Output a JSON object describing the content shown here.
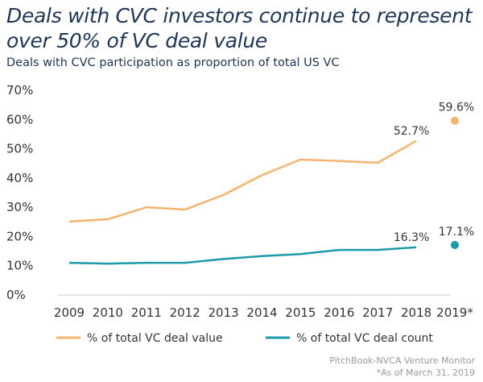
{
  "title": "Deals with CVC investors continue to represent over 50% of VC deal value",
  "subtitle": "Deals with CVC participation as proportion of total US VC",
  "source": "PitchBook-NVCA Venture Monitor",
  "footnote": "*As of March 31, 2019",
  "colors": {
    "value": "#F5B46E",
    "count": "#1B9AAA"
  },
  "chart_data": {
    "type": "line",
    "categories": [
      "2009",
      "2010",
      "2011",
      "2012",
      "2013",
      "2014",
      "2015",
      "2016",
      "2017",
      "2018",
      "2019*"
    ],
    "y_ticks": [
      "0%",
      "10%",
      "20%",
      "30%",
      "40%",
      "50%",
      "60%",
      "70%"
    ],
    "ylim": [
      0,
      70
    ],
    "series": [
      {
        "name": "% of total VC deal value",
        "values": [
          25.1,
          25.9,
          30.0,
          29.2,
          34.2,
          41.0,
          46.3,
          45.8,
          45.2,
          52.7,
          59.6
        ],
        "labels": {
          "9": "52.7%",
          "10": "59.6%"
        }
      },
      {
        "name": "% of total VC deal count",
        "values": [
          11.0,
          10.7,
          11.0,
          11.0,
          12.3,
          13.3,
          14.0,
          15.4,
          15.4,
          16.3,
          17.1
        ],
        "labels": {
          "9": "16.3%",
          "10": "17.1%"
        }
      }
    ],
    "legend": "bottom"
  }
}
